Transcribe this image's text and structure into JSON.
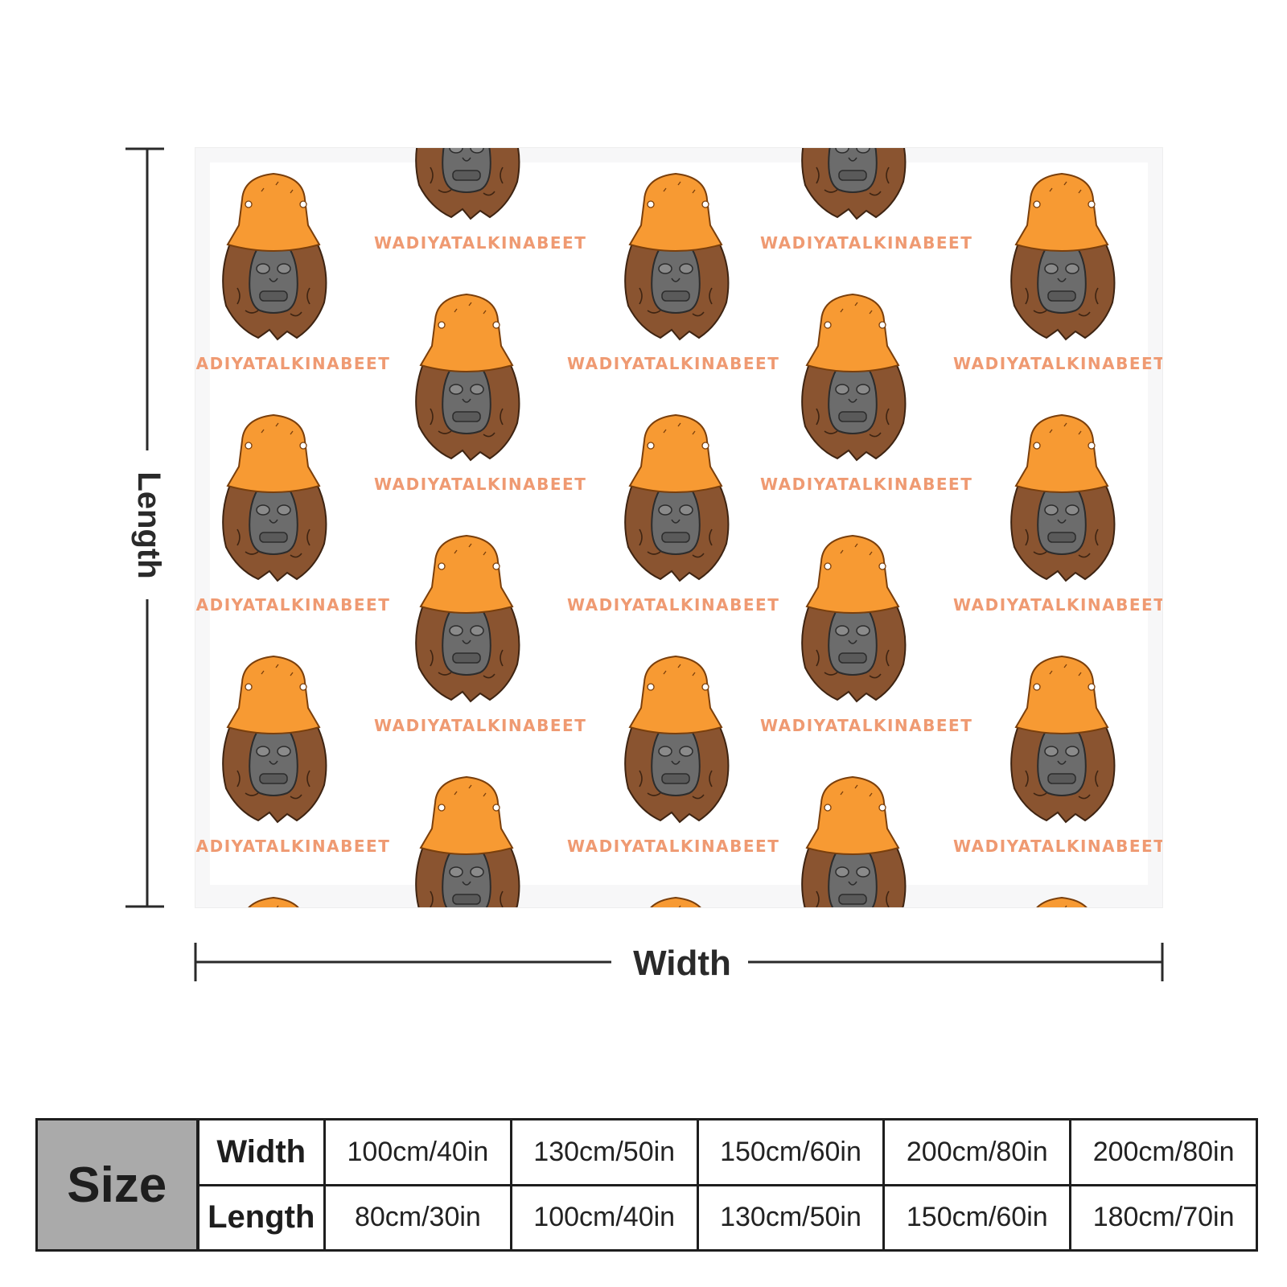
{
  "product": {
    "pattern_slogan": "WADIYATALKINABEET",
    "colors": {
      "hat": "#f79a33",
      "hat_outline": "#7a3f0c",
      "fur": "#8a5430",
      "fur_outline": "#3e2412",
      "face": "#6c6c6c",
      "slogan": "#ef9a72"
    }
  },
  "dimensions": {
    "length_label": "Length",
    "width_label": "Width"
  },
  "size_table": {
    "title": "Size",
    "width_label": "Width",
    "length_label": "Length",
    "widths": [
      "100cm/40in",
      "130cm/50in",
      "150cm/60in",
      "200cm/80in",
      "200cm/80in"
    ],
    "lengths": [
      "80cm/30in",
      "100cm/40in",
      "130cm/50in",
      "150cm/60in",
      "180cm/70in"
    ]
  }
}
